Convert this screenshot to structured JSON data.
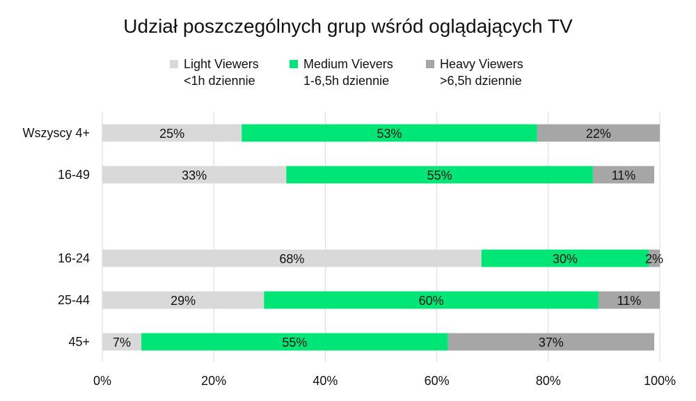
{
  "chart_data": {
    "type": "bar",
    "orientation": "horizontal",
    "stacked": true,
    "title": "Udział poszczególnych grup wśród oglądających TV",
    "categories": [
      "Wszyscy 4+",
      "16-49",
      "16-24",
      "25-44",
      "45+"
    ],
    "series": [
      {
        "name": "Light Viewers",
        "subtitle": "<1h dziennie",
        "color": "#d9d9d9",
        "values": [
          25,
          33,
          68,
          29,
          7
        ],
        "labels": [
          "25%",
          "33%",
          "68%",
          "29%",
          "7%"
        ]
      },
      {
        "name": "Medium Vievers",
        "subtitle": "1-6,5h dziennie",
        "color": "#00e676",
        "values": [
          53,
          55,
          30,
          60,
          55
        ],
        "labels": [
          "53%",
          "55%",
          "30%",
          "60%",
          "55%"
        ]
      },
      {
        "name": "Heavy Viewers",
        "subtitle": ">6,5h dziennie",
        "color": "#a6a6a6",
        "values": [
          22,
          11,
          2,
          11,
          37
        ],
        "labels": [
          "22%",
          "11%",
          "2%",
          "11%",
          "37%"
        ]
      }
    ],
    "xlim": [
      0,
      100
    ],
    "xticks": [
      "0%",
      "20%",
      "40%",
      "60%",
      "80%",
      "100%"
    ],
    "grid": true,
    "legend_position": "top"
  }
}
